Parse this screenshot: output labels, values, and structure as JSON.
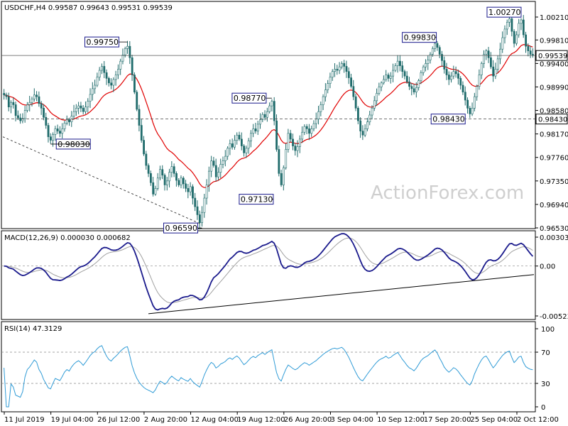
{
  "symbol_header": "USDCHF,H4  0.99587 0.99643 0.99531 0.99539",
  "watermark": "ActionForex.com",
  "colors": {
    "candle": "#1f6b6b",
    "ma": "#e00000",
    "macd": "#1a1a8c",
    "signal": "#a0a0a0",
    "rsi": "#2f9bd6",
    "price_line": "#000000",
    "label_border": "#1a1a8c"
  },
  "chart_data": [
    {
      "type": "candlestick",
      "title": "USDCHF,H4",
      "y_ticks": [
        "1.00210",
        "0.99810",
        "0.99400",
        "0.98990",
        "0.98580",
        "0.98170",
        "0.97760",
        "0.97350",
        "0.96940",
        "0.96530"
      ],
      "y_tick_values": [
        1.0021,
        0.9981,
        0.994,
        0.9899,
        0.9858,
        0.9817,
        0.9776,
        0.9735,
        0.9694,
        0.9653
      ],
      "ylim": [
        0.9653,
        1.0021
      ],
      "current_price_label": "0.99539",
      "current_price": 0.99539,
      "support_line_label": "0.98430",
      "support_line": 0.9843,
      "x_ticks": [
        "11 Jul 2019",
        "19 Jul 04:00",
        "26 Jul 12:00",
        "2 Aug 20:00",
        "12 Aug 04:00",
        "19 Aug 12:00",
        "26 Aug 20:00",
        "3 Sep 04:00",
        "10 Sep 12:00",
        "17 Sep 20:00",
        "25 Sep 04:00",
        "2 Oct 12:00"
      ],
      "annotations": [
        {
          "text": "0.99750",
          "value": 0.9975,
          "x_index": 53
        },
        {
          "text": "0.98030",
          "value": 0.9803,
          "x_index": 20
        },
        {
          "text": "0.98770",
          "value": 0.9877,
          "x_index": 115
        },
        {
          "text": "0.97130",
          "value": 0.9713,
          "x_index": 115
        },
        {
          "text": "0.96590",
          "value": 0.9659,
          "x_index": 85
        },
        {
          "text": "0.99830",
          "value": 0.9983,
          "x_index": 185
        },
        {
          "text": "0.98430",
          "value": 0.9843,
          "x_index": 198
        },
        {
          "text": "1.00270",
          "value": 1.0027,
          "x_index": 222
        }
      ],
      "close_series": [
        0.9885,
        0.9882,
        0.9864,
        0.9872,
        0.9868,
        0.9849,
        0.9845,
        0.984,
        0.9844,
        0.9858,
        0.9868,
        0.9872,
        0.9878,
        0.9885,
        0.9882,
        0.987,
        0.9862,
        0.9846,
        0.9832,
        0.9812,
        0.9806,
        0.9816,
        0.9826,
        0.9822,
        0.9818,
        0.9826,
        0.9836,
        0.9842,
        0.9838,
        0.9848,
        0.9856,
        0.9862,
        0.9866,
        0.9862,
        0.9856,
        0.9864,
        0.9874,
        0.9886,
        0.9896,
        0.9902,
        0.9916,
        0.9928,
        0.9935,
        0.9924,
        0.9914,
        0.9906,
        0.9902,
        0.9912,
        0.992,
        0.993,
        0.9944,
        0.9955,
        0.9966,
        0.997,
        0.995,
        0.992,
        0.989,
        0.986,
        0.9832,
        0.9806,
        0.9782,
        0.9762,
        0.9748,
        0.9732,
        0.9712,
        0.9722,
        0.974,
        0.9755,
        0.9745,
        0.9728,
        0.9735,
        0.975,
        0.976,
        0.9748,
        0.9736,
        0.9728,
        0.974,
        0.973,
        0.9722,
        0.9716,
        0.9725,
        0.9705,
        0.969,
        0.9676,
        0.9662,
        0.968,
        0.9705,
        0.9728,
        0.9752,
        0.977,
        0.9762,
        0.9742,
        0.975,
        0.9764,
        0.977,
        0.9778,
        0.9792,
        0.98,
        0.9794,
        0.9806,
        0.9815,
        0.9808,
        0.9796,
        0.9784,
        0.9792,
        0.9805,
        0.9818,
        0.9826,
        0.9822,
        0.9834,
        0.9842,
        0.9851,
        0.9846,
        0.9856,
        0.9866,
        0.9874,
        0.984,
        0.979,
        0.9748,
        0.9728,
        0.9758,
        0.979,
        0.9818,
        0.9808,
        0.9796,
        0.9788,
        0.9795,
        0.9808,
        0.982,
        0.983,
        0.9826,
        0.9818,
        0.9826,
        0.9835,
        0.9843,
        0.9856,
        0.9868,
        0.9882,
        0.9894,
        0.9905,
        0.9916,
        0.9926,
        0.993,
        0.9928,
        0.9934,
        0.994,
        0.9935,
        0.9926,
        0.9915,
        0.99,
        0.9882,
        0.9862,
        0.984,
        0.9822,
        0.9815,
        0.9826,
        0.9838,
        0.985,
        0.9862,
        0.9875,
        0.9888,
        0.9899,
        0.9906,
        0.9912,
        0.992,
        0.9914,
        0.9918,
        0.9928,
        0.9936,
        0.9944,
        0.9936,
        0.9926,
        0.9918,
        0.9908,
        0.99,
        0.9896,
        0.989,
        0.9898,
        0.991,
        0.9924,
        0.9934,
        0.994,
        0.9946,
        0.9956,
        0.9966,
        0.9975,
        0.9968,
        0.9956,
        0.9945,
        0.993,
        0.992,
        0.9912,
        0.9918,
        0.9926,
        0.9922,
        0.9914,
        0.9902,
        0.989,
        0.9876,
        0.9862,
        0.9852,
        0.9862,
        0.9882,
        0.99,
        0.992,
        0.994,
        0.9956,
        0.9962,
        0.995,
        0.9934,
        0.9918,
        0.993,
        0.9948,
        0.9965,
        0.9985,
        1.0,
        1.0012,
        1.0018,
        0.9996,
        0.9975,
        0.999,
        1.001,
        1.0016,
        0.999,
        0.997,
        0.9962,
        0.9956,
        0.9954
      ]
    },
    {
      "type": "line",
      "title": "MACD(12,26,9) 0.000030 0.000682",
      "y_ticks": [
        "0.00303",
        "0.00",
        "-0.005236"
      ],
      "y_tick_values": [
        0.00303,
        0.0,
        -0.005236
      ],
      "ylim": [
        -0.005236,
        0.00303
      ],
      "trendline_label": ""
    },
    {
      "type": "line",
      "title": "RSI(14) 47.3129",
      "y_ticks": [
        "100",
        "70",
        "30",
        "0"
      ],
      "y_tick_values": [
        100,
        70,
        30,
        0
      ],
      "ylim": [
        0,
        100
      ]
    }
  ]
}
